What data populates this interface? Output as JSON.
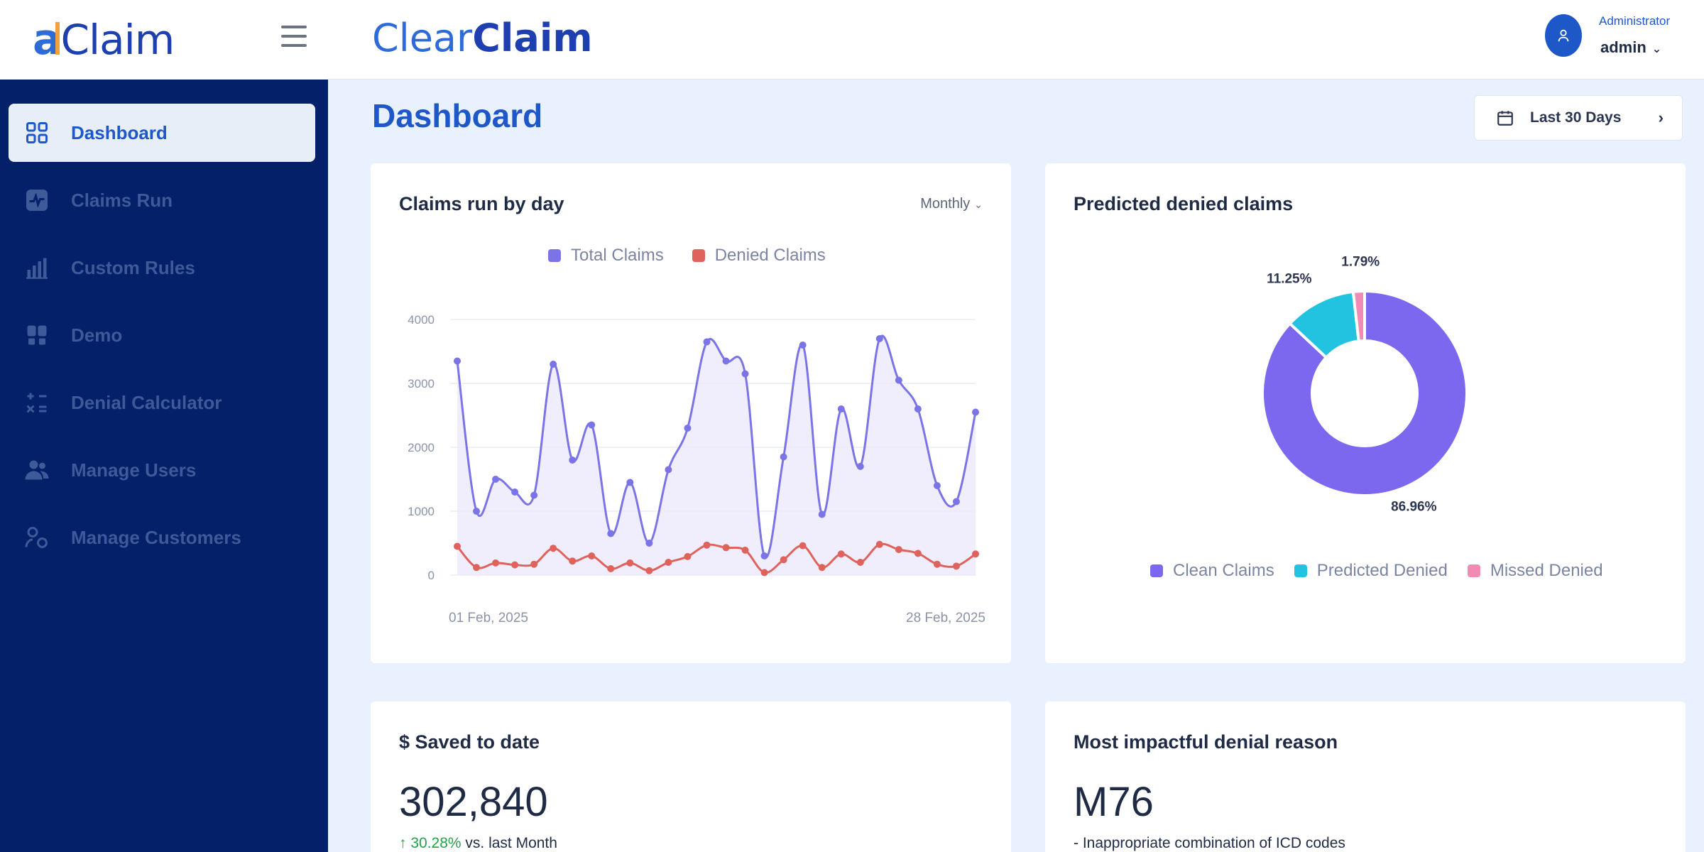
{
  "sidebar": {
    "logo_a": "a",
    "logo_rest": "Claim",
    "items": [
      {
        "label": "Dashboard",
        "icon": "grid-icon",
        "active": true
      },
      {
        "label": "Claims Run",
        "icon": "activity-icon",
        "active": false
      },
      {
        "label": "Custom Rules",
        "icon": "bar-chart-icon",
        "active": false
      },
      {
        "label": "Demo",
        "icon": "demo-icon",
        "active": false
      },
      {
        "label": "Denial Calculator",
        "icon": "calculator-icon",
        "active": false
      },
      {
        "label": "Manage Users",
        "icon": "users-icon",
        "active": false
      },
      {
        "label": "Manage Customers",
        "icon": "customers-icon",
        "active": false
      }
    ]
  },
  "header": {
    "brand_part1": "Clear",
    "brand_part2": "Claim",
    "user_role": "Administrator",
    "user_name": "admin"
  },
  "page": {
    "title": "Dashboard",
    "date_range": "Last 30 Days"
  },
  "claims_card": {
    "title": "Claims run by day",
    "period": "Monthly"
  },
  "denied_card": {
    "title": "Predicted denied claims"
  },
  "saved_card": {
    "title": "$ Saved to date",
    "value": "302,840",
    "change": "↑ 30.28%",
    "change_suffix": " vs. last Month"
  },
  "reason_card": {
    "title": "Most impactful denial reason",
    "code": "M76",
    "description": "- Inappropriate combination of ICD codes"
  },
  "colors": {
    "sidebar_bg": "#032068",
    "accent": "#1e57c8",
    "total_claims": "#7b74e6",
    "denied_claims": "#e0625c",
    "clean_claims": "#7b68ee",
    "predicted_denied": "#22c3e0",
    "missed_denied": "#f28bb4"
  },
  "chart_data": [
    {
      "type": "area",
      "title": "Claims run by day",
      "x_start_label": "01 Feb, 2025",
      "x_end_label": "28 Feb, 2025",
      "ylim": [
        0,
        4000
      ],
      "y_ticks": [
        "0",
        "1000",
        "2000",
        "3000",
        "4000"
      ],
      "grid": true,
      "legend_position": "top",
      "series": [
        {
          "name": "Total Claims",
          "values": [
            3350,
            1000,
            1500,
            1300,
            1250,
            3300,
            1800,
            2350,
            650,
            1450,
            500,
            1650,
            2300,
            3650,
            3350,
            3150,
            300,
            1850,
            3600,
            950,
            2600,
            1700,
            3700,
            3050,
            2600,
            1400,
            1150,
            2550
          ]
        },
        {
          "name": "Denied Claims",
          "values": [
            450,
            120,
            190,
            160,
            170,
            420,
            220,
            300,
            100,
            190,
            70,
            200,
            290,
            470,
            430,
            390,
            40,
            240,
            460,
            120,
            330,
            200,
            480,
            400,
            340,
            170,
            140,
            330
          ]
        }
      ]
    },
    {
      "type": "pie",
      "title": "Predicted denied claims",
      "legend_position": "bottom",
      "categories": [
        "Clean Claims",
        "Predicted Denied",
        "Missed Denied"
      ],
      "values": [
        86.96,
        11.25,
        1.79
      ],
      "labels": [
        "86.96%",
        "11.25%",
        "1.79%"
      ]
    }
  ]
}
